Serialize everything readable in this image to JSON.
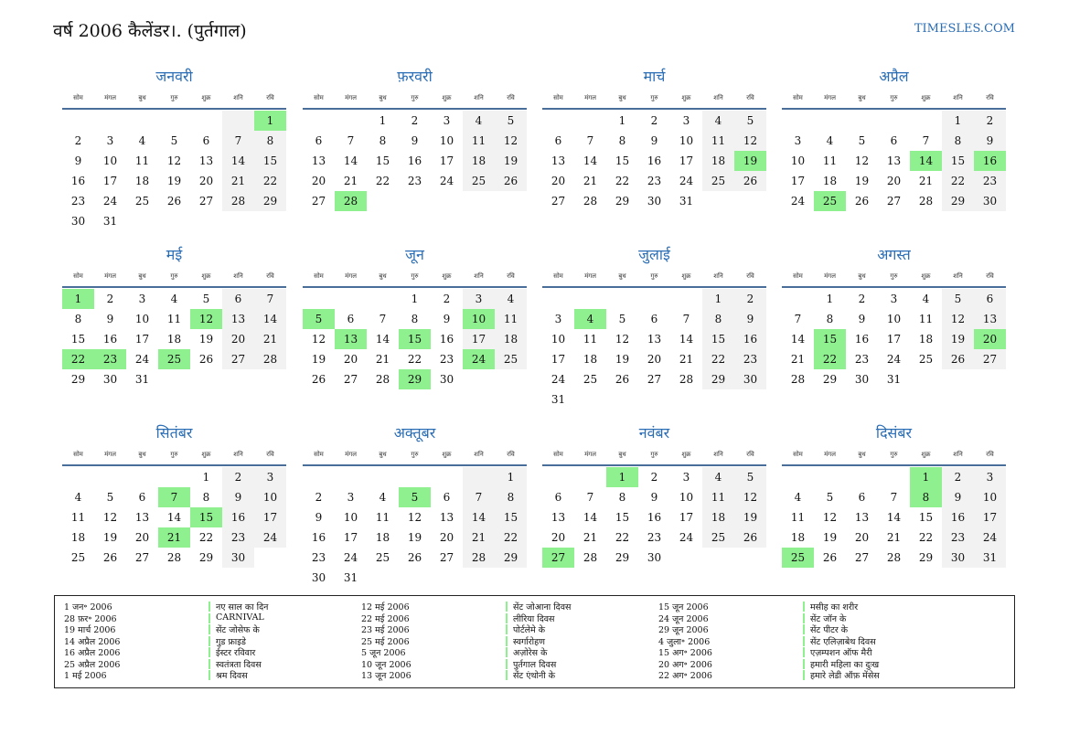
{
  "header": {
    "title": "वर्ष 2006 कैलेंडर।. (पुर्तगाल)",
    "site": "TIMESLES.COM"
  },
  "weekdays": [
    "सोम",
    "मंगल",
    "बुध",
    "गुरु",
    "शुक्र",
    "शनि",
    "रवि"
  ],
  "months": [
    {
      "name": "जनवरी",
      "highlights": [
        1
      ],
      "weeks": [
        [
          null,
          null,
          null,
          null,
          null,
          null,
          1
        ],
        [
          2,
          3,
          4,
          5,
          6,
          7,
          8
        ],
        [
          9,
          10,
          11,
          12,
          13,
          14,
          15
        ],
        [
          16,
          17,
          18,
          19,
          20,
          21,
          22
        ],
        [
          23,
          24,
          25,
          26,
          27,
          28,
          29
        ],
        [
          30,
          31
        ]
      ]
    },
    {
      "name": "फ़रवरी",
      "highlights": [
        28
      ],
      "weeks": [
        [
          null,
          null,
          1,
          2,
          3,
          4,
          5
        ],
        [
          6,
          7,
          8,
          9,
          10,
          11,
          12
        ],
        [
          13,
          14,
          15,
          16,
          17,
          18,
          19
        ],
        [
          20,
          21,
          22,
          23,
          24,
          25,
          26
        ],
        [
          27,
          28
        ]
      ]
    },
    {
      "name": "मार्च",
      "highlights": [
        19
      ],
      "weeks": [
        [
          null,
          null,
          1,
          2,
          3,
          4,
          5
        ],
        [
          6,
          7,
          8,
          9,
          10,
          11,
          12
        ],
        [
          13,
          14,
          15,
          16,
          17,
          18,
          19
        ],
        [
          20,
          21,
          22,
          23,
          24,
          25,
          26
        ],
        [
          27,
          28,
          29,
          30,
          31
        ]
      ]
    },
    {
      "name": "अप्रैल",
      "highlights": [
        14,
        16,
        25
      ],
      "weeks": [
        [
          null,
          null,
          null,
          null,
          null,
          1,
          2
        ],
        [
          3,
          4,
          5,
          6,
          7,
          8,
          9
        ],
        [
          10,
          11,
          12,
          13,
          14,
          15,
          16
        ],
        [
          17,
          18,
          19,
          20,
          21,
          22,
          23
        ],
        [
          24,
          25,
          26,
          27,
          28,
          29,
          30
        ]
      ]
    },
    {
      "name": "मई",
      "highlights": [
        1,
        12,
        22,
        23,
        25
      ],
      "weeks": [
        [
          1,
          2,
          3,
          4,
          5,
          6,
          7
        ],
        [
          8,
          9,
          10,
          11,
          12,
          13,
          14
        ],
        [
          15,
          16,
          17,
          18,
          19,
          20,
          21
        ],
        [
          22,
          23,
          24,
          25,
          26,
          27,
          28
        ],
        [
          29,
          30,
          31
        ]
      ]
    },
    {
      "name": "जून",
      "highlights": [
        5,
        10,
        13,
        15,
        24,
        29
      ],
      "weeks": [
        [
          null,
          null,
          null,
          1,
          2,
          3,
          4
        ],
        [
          5,
          6,
          7,
          8,
          9,
          10,
          11
        ],
        [
          12,
          13,
          14,
          15,
          16,
          17,
          18
        ],
        [
          19,
          20,
          21,
          22,
          23,
          24,
          25
        ],
        [
          26,
          27,
          28,
          29,
          30
        ]
      ]
    },
    {
      "name": "जुलाई",
      "highlights": [
        4
      ],
      "weeks": [
        [
          null,
          null,
          null,
          null,
          null,
          1,
          2
        ],
        [
          3,
          4,
          5,
          6,
          7,
          8,
          9
        ],
        [
          10,
          11,
          12,
          13,
          14,
          15,
          16
        ],
        [
          17,
          18,
          19,
          20,
          21,
          22,
          23
        ],
        [
          24,
          25,
          26,
          27,
          28,
          29,
          30
        ],
        [
          31
        ]
      ]
    },
    {
      "name": "अगस्त",
      "highlights": [
        15,
        20,
        22
      ],
      "weeks": [
        [
          null,
          1,
          2,
          3,
          4,
          5,
          6
        ],
        [
          7,
          8,
          9,
          10,
          11,
          12,
          13
        ],
        [
          14,
          15,
          16,
          17,
          18,
          19,
          20
        ],
        [
          21,
          22,
          23,
          24,
          25,
          26,
          27
        ],
        [
          28,
          29,
          30,
          31
        ]
      ]
    },
    {
      "name": "सितंबर",
      "highlights": [
        7,
        15,
        21
      ],
      "weeks": [
        [
          null,
          null,
          null,
          null,
          1,
          2,
          3
        ],
        [
          4,
          5,
          6,
          7,
          8,
          9,
          10
        ],
        [
          11,
          12,
          13,
          14,
          15,
          16,
          17
        ],
        [
          18,
          19,
          20,
          21,
          22,
          23,
          24
        ],
        [
          25,
          26,
          27,
          28,
          29,
          30
        ]
      ]
    },
    {
      "name": "अक्तूबर",
      "highlights": [
        5
      ],
      "weeks": [
        [
          null,
          null,
          null,
          null,
          null,
          null,
          1
        ],
        [
          2,
          3,
          4,
          5,
          6,
          7,
          8
        ],
        [
          9,
          10,
          11,
          12,
          13,
          14,
          15
        ],
        [
          16,
          17,
          18,
          19,
          20,
          21,
          22
        ],
        [
          23,
          24,
          25,
          26,
          27,
          28,
          29
        ],
        [
          30,
          31
        ]
      ]
    },
    {
      "name": "नवंबर",
      "highlights": [
        1,
        27
      ],
      "weeks": [
        [
          null,
          null,
          1,
          2,
          3,
          4,
          5
        ],
        [
          6,
          7,
          8,
          9,
          10,
          11,
          12
        ],
        [
          13,
          14,
          15,
          16,
          17,
          18,
          19
        ],
        [
          20,
          21,
          22,
          23,
          24,
          25,
          26
        ],
        [
          27,
          28,
          29,
          30
        ]
      ]
    },
    {
      "name": "दिसंबर",
      "highlights": [
        1,
        8,
        25
      ],
      "weeks": [
        [
          null,
          null,
          null,
          null,
          1,
          2,
          3
        ],
        [
          4,
          5,
          6,
          7,
          8,
          9,
          10
        ],
        [
          11,
          12,
          13,
          14,
          15,
          16,
          17
        ],
        [
          18,
          19,
          20,
          21,
          22,
          23,
          24
        ],
        [
          25,
          26,
          27,
          28,
          29,
          30,
          31
        ]
      ]
    }
  ],
  "holidays": [
    {
      "date": "1 जन॰ 2006",
      "name": "नए साल का दिन"
    },
    {
      "date": "28 फ़र॰ 2006",
      "name": "CARNIVAL"
    },
    {
      "date": "19 मार्च 2006",
      "name": "सेंट जोसेफ के"
    },
    {
      "date": "14 अप्रैल 2006",
      "name": "गुड फ्राइडे"
    },
    {
      "date": "16 अप्रैल 2006",
      "name": "ईस्टर रविवार"
    },
    {
      "date": "25 अप्रैल 2006",
      "name": "स्वतंत्रता दिवस"
    },
    {
      "date": "1 मई 2006",
      "name": "श्रम दिवस"
    },
    {
      "date": "12 मई 2006",
      "name": "सेंट जोआना दिवस"
    },
    {
      "date": "22 मई 2006",
      "name": "लीरिया दिवस"
    },
    {
      "date": "23 मई 2006",
      "name": "पोर्टलेमे के"
    },
    {
      "date": "25 मई 2006",
      "name": "स्वर्गारोहण"
    },
    {
      "date": "5 जून 2006",
      "name": "अज़ोरेस के"
    },
    {
      "date": "10 जून 2006",
      "name": "पुर्तगाल दिवस"
    },
    {
      "date": "13 जून 2006",
      "name": "सेंट एंथोनी के"
    },
    {
      "date": "15 जून 2006",
      "name": "मसीह का शरीर"
    },
    {
      "date": "24 जून 2006",
      "name": "सेंट जॉन के"
    },
    {
      "date": "29 जून 2006",
      "name": "सेंट पीटर के"
    },
    {
      "date": "4 जुला॰ 2006",
      "name": "सेंट एलिज़ाबेथ दिवस"
    },
    {
      "date": "15 अग॰ 2006",
      "name": "एज़म्पशन ऑफ मैरी"
    },
    {
      "date": "20 अग॰ 2006",
      "name": "हमारी महिला का दुःख"
    },
    {
      "date": "22 अग॰ 2006",
      "name": "हमारे लेडी ऑफ़ मेंसेस"
    }
  ]
}
